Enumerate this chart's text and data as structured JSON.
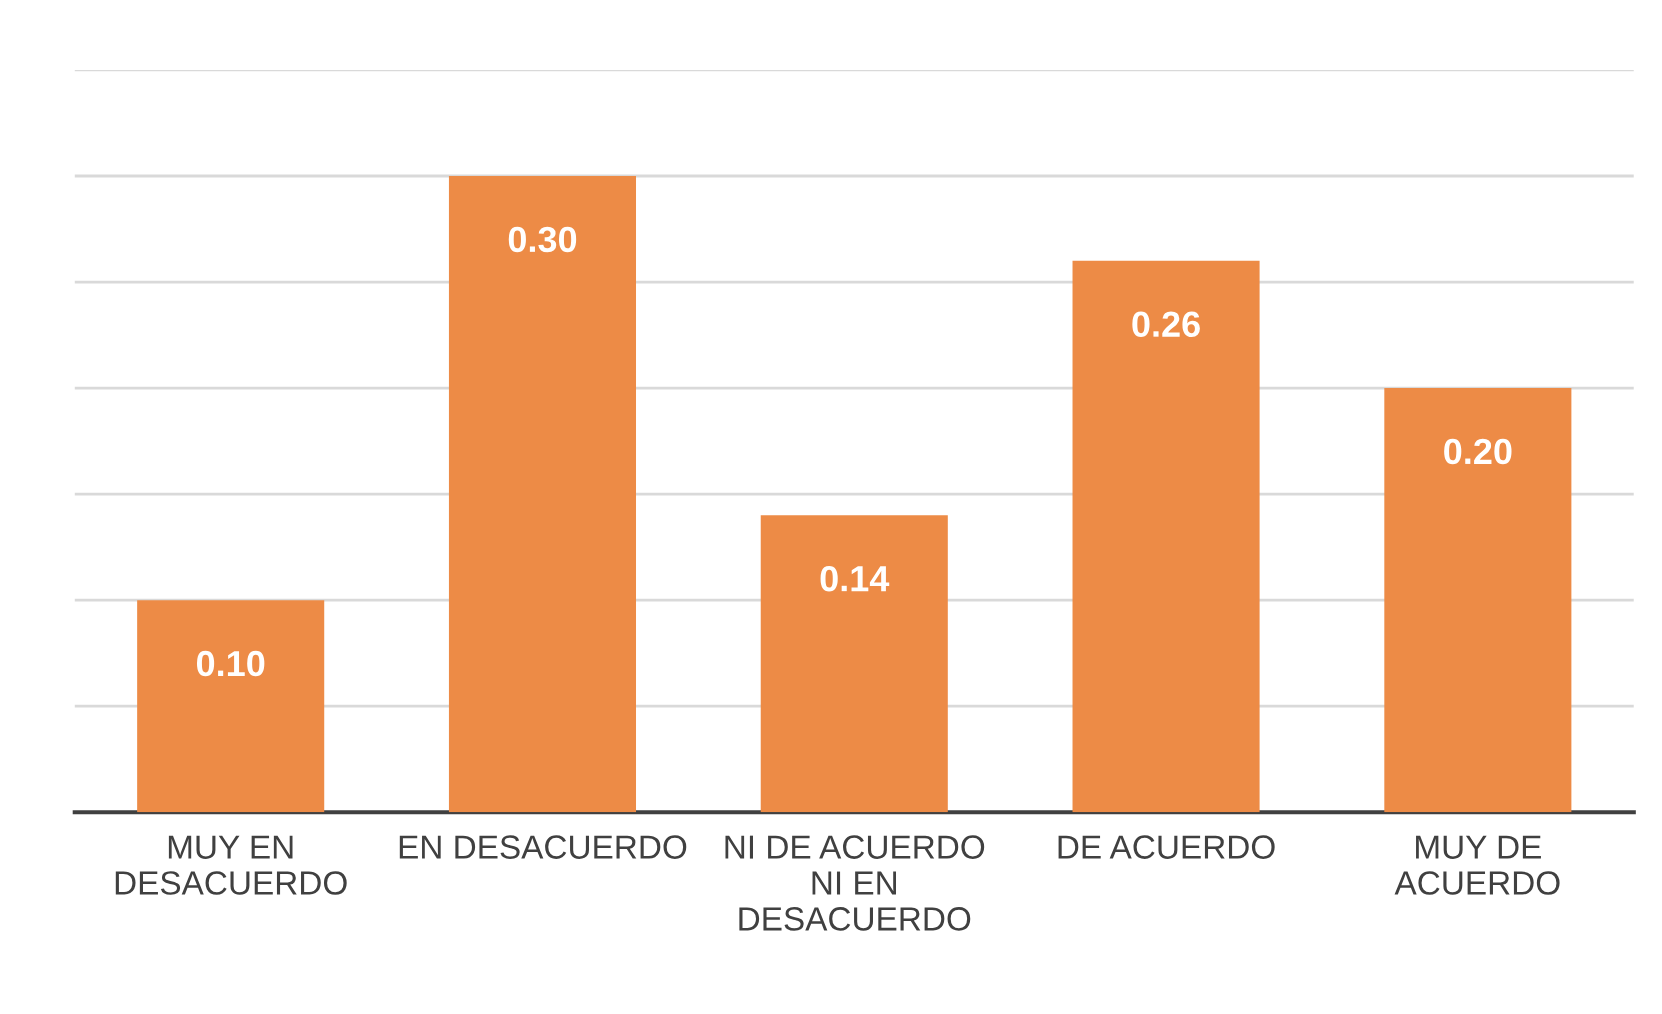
{
  "chart_data": {
    "type": "bar",
    "categories": [
      "MUY EN\nDESACUERDO",
      "EN DESACUERDO",
      "NI DE ACUERDO\nNI EN\nDESACUERDO",
      "DE ACUERDO",
      "MUY DE\nACUERDO"
    ],
    "values": [
      0.1,
      0.3,
      0.14,
      0.26,
      0.2
    ],
    "color": "#ed8b46",
    "value_labels": [
      "0.10",
      "0.30",
      "0.14",
      "0.26",
      "0.20"
    ],
    "ylim": [
      0,
      0.35
    ],
    "yticks": [
      {
        "value": 0,
        "label": null
      },
      {
        "value": 0.05,
        "label": null
      },
      {
        "value": 0.1,
        "label": null
      },
      {
        "value": 0.15,
        "label": null
      },
      {
        "value": 0.2,
        "label": null
      },
      {
        "value": 0.25,
        "label": null
      },
      {
        "value": 0.3,
        "label": null
      },
      {
        "value": 0.35,
        "label": null
      }
    ],
    "grid": "y",
    "tick_labels": "x"
  }
}
